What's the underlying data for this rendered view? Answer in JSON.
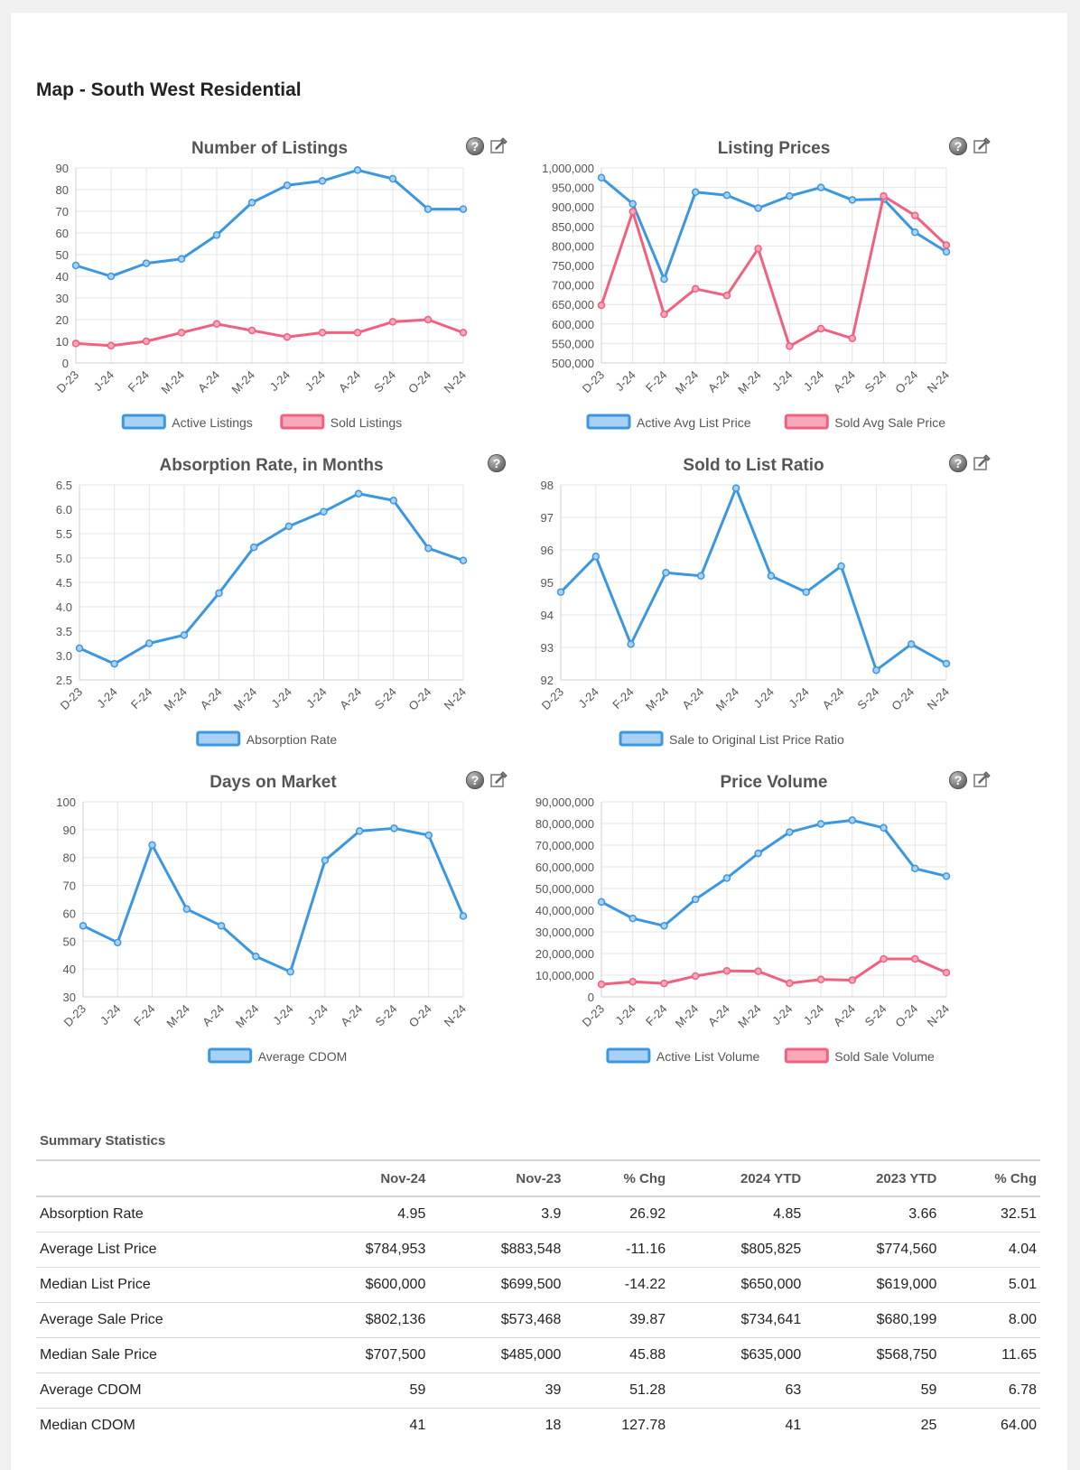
{
  "page": {
    "title": "Map - South West Residential"
  },
  "chart_data": [
    {
      "id": "listings",
      "type": "line",
      "title": "Number of Listings",
      "categories": [
        "D-23",
        "J-24",
        "F-24",
        "M-24",
        "A-24",
        "M-24",
        "J-24",
        "J-24",
        "A-24",
        "S-24",
        "O-24",
        "N-24"
      ],
      "yticks": [
        0,
        10,
        20,
        30,
        40,
        50,
        60,
        70,
        80,
        90
      ],
      "ylim": [
        0,
        90
      ],
      "series": [
        {
          "name": "Active Listings",
          "color": "#3a97e0",
          "fill": "#a9d1f5",
          "values": [
            45,
            40,
            46,
            48,
            59,
            74,
            82,
            84,
            89,
            85,
            71,
            71
          ]
        },
        {
          "name": "Sold Listings",
          "color": "#f0607f",
          "fill": "#f7a9ba",
          "values": [
            9,
            8,
            10,
            14,
            18,
            15,
            12,
            14,
            14,
            19,
            20,
            14
          ]
        }
      ],
      "icons": [
        "help-icon",
        "settings-icon"
      ]
    },
    {
      "id": "prices",
      "type": "line",
      "title": "Listing Prices",
      "categories": [
        "D-23",
        "J-24",
        "F-24",
        "M-24",
        "A-24",
        "M-24",
        "J-24",
        "J-24",
        "A-24",
        "S-24",
        "O-24",
        "N-24"
      ],
      "yticks": [
        500000,
        550000,
        600000,
        650000,
        700000,
        750000,
        800000,
        850000,
        900000,
        950000,
        1000000
      ],
      "ylim": [
        500000,
        1000000
      ],
      "series": [
        {
          "name": "Active Avg List Price",
          "color": "#3a97e0",
          "fill": "#a9d1f5",
          "values": [
            975000,
            908000,
            715000,
            938000,
            930000,
            897000,
            928000,
            950000,
            918000,
            920000,
            835000,
            785000
          ]
        },
        {
          "name": "Sold Avg Sale Price",
          "color": "#f0607f",
          "fill": "#f7a9ba",
          "values": [
            648000,
            888000,
            625000,
            690000,
            673000,
            793000,
            543000,
            588000,
            563000,
            928000,
            878000,
            802000
          ]
        }
      ],
      "icons": [
        "help-icon",
        "settings-icon"
      ]
    },
    {
      "id": "absorption",
      "type": "line",
      "title": "Absorption Rate, in Months",
      "categories": [
        "D-23",
        "J-24",
        "F-24",
        "M-24",
        "A-24",
        "M-24",
        "J-24",
        "J-24",
        "A-24",
        "S-24",
        "O-24",
        "N-24"
      ],
      "yticks": [
        2.5,
        3.0,
        3.5,
        4.0,
        4.5,
        5.0,
        5.5,
        6.0,
        6.5
      ],
      "ylim": [
        2.5,
        6.5
      ],
      "decimals": 1,
      "series": [
        {
          "name": "Absorption Rate",
          "color": "#3a97e0",
          "fill": "#a9d1f5",
          "values": [
            3.15,
            2.83,
            3.25,
            3.42,
            4.28,
            5.22,
            5.65,
            5.95,
            6.32,
            6.18,
            5.2,
            4.95
          ]
        }
      ],
      "icons": [
        "help-icon"
      ]
    },
    {
      "id": "ratio",
      "type": "line",
      "title": "Sold to List Ratio",
      "categories": [
        "D-23",
        "J-24",
        "F-24",
        "M-24",
        "A-24",
        "M-24",
        "J-24",
        "J-24",
        "A-24",
        "S-24",
        "O-24",
        "N-24"
      ],
      "yticks": [
        92,
        93,
        94,
        95,
        96,
        97,
        98
      ],
      "ylim": [
        92,
        98
      ],
      "series": [
        {
          "name": "Sale to Original List Price Ratio",
          "color": "#3a97e0",
          "fill": "#a9d1f5",
          "values": [
            94.7,
            95.8,
            93.1,
            95.3,
            95.2,
            97.9,
            95.2,
            94.7,
            95.5,
            92.3,
            93.1,
            92.5
          ]
        }
      ],
      "icons": [
        "help-icon",
        "settings-icon"
      ]
    },
    {
      "id": "dom",
      "type": "line",
      "title": "Days on Market",
      "categories": [
        "D-23",
        "J-24",
        "F-24",
        "M-24",
        "A-24",
        "M-24",
        "J-24",
        "J-24",
        "A-24",
        "S-24",
        "O-24",
        "N-24"
      ],
      "yticks": [
        30,
        40,
        50,
        60,
        70,
        80,
        90,
        100
      ],
      "ylim": [
        30,
        100
      ],
      "series": [
        {
          "name": "Average CDOM",
          "color": "#3a97e0",
          "fill": "#a9d1f5",
          "values": [
            55.5,
            49.5,
            84.5,
            61.5,
            55.5,
            44.5,
            39,
            79,
            89.5,
            90.5,
            88,
            59
          ]
        }
      ],
      "icons": [
        "help-icon",
        "settings-icon"
      ]
    },
    {
      "id": "volume",
      "type": "line",
      "title": "Price Volume",
      "categories": [
        "D-23",
        "J-24",
        "F-24",
        "M-24",
        "A-24",
        "M-24",
        "J-24",
        "J-24",
        "A-24",
        "S-24",
        "O-24",
        "N-24"
      ],
      "yticks": [
        0,
        10000000,
        20000000,
        30000000,
        40000000,
        50000000,
        60000000,
        70000000,
        80000000,
        90000000
      ],
      "ylim": [
        0,
        90000000
      ],
      "series": [
        {
          "name": "Active List Volume",
          "color": "#3a97e0",
          "fill": "#a9d1f5",
          "values": [
            43800000,
            36200000,
            32800000,
            45000000,
            54800000,
            66200000,
            76000000,
            79800000,
            81500000,
            78000000,
            59200000,
            55700000
          ]
        },
        {
          "name": "Sold Sale Volume",
          "color": "#f0607f",
          "fill": "#f7a9ba",
          "values": [
            5800000,
            7000000,
            6200000,
            9600000,
            12000000,
            11800000,
            6300000,
            8000000,
            7700000,
            17500000,
            17500000,
            11200000
          ]
        }
      ],
      "icons": [
        "help-icon",
        "settings-icon"
      ]
    }
  ],
  "summary": {
    "title": "Summary Statistics",
    "headers": [
      "",
      "Nov-24",
      "Nov-23",
      "% Chg",
      "2024 YTD",
      "2023 YTD",
      "% Chg"
    ],
    "rows": [
      [
        "Absorption Rate",
        "4.95",
        "3.9",
        "26.92",
        "4.85",
        "3.66",
        "32.51"
      ],
      [
        "Average List Price",
        "$784,953",
        "$883,548",
        "-11.16",
        "$805,825",
        "$774,560",
        "4.04"
      ],
      [
        "Median List Price",
        "$600,000",
        "$699,500",
        "-14.22",
        "$650,000",
        "$619,000",
        "5.01"
      ],
      [
        "Average Sale Price",
        "$802,136",
        "$573,468",
        "39.87",
        "$734,641",
        "$680,199",
        "8.00"
      ],
      [
        "Median Sale Price",
        "$707,500",
        "$485,000",
        "45.88",
        "$635,000",
        "$568,750",
        "11.65"
      ],
      [
        "Average CDOM",
        "59",
        "39",
        "51.28",
        "63",
        "59",
        "6.78"
      ],
      [
        "Median CDOM",
        "41",
        "18",
        "127.78",
        "41",
        "25",
        "64.00"
      ]
    ]
  }
}
